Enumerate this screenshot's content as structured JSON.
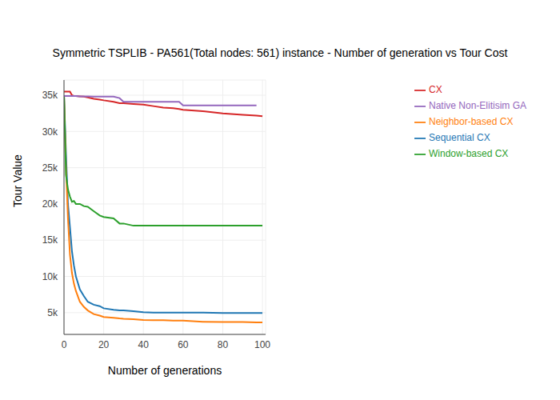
{
  "chart_data": {
    "type": "line",
    "title": "Symmetric TSPLIB - PA561(Total nodes: 561) instance - Number of generation vs Tour Cost",
    "x_label": "Number of generations",
    "y_label": "Tour Value",
    "x": [
      0,
      1,
      2,
      3,
      4,
      5,
      6,
      8,
      10,
      12,
      15,
      18,
      20,
      25,
      28,
      30,
      35,
      40,
      45,
      50,
      55,
      58,
      60,
      70,
      80,
      90,
      97,
      100
    ],
    "xlim": [
      0,
      101.6
    ],
    "xticks": [
      0,
      20,
      40,
      60,
      80,
      100
    ],
    "ylim": [
      2000,
      37100
    ],
    "yticks": [
      {
        "value": 5000,
        "label": "5k"
      },
      {
        "value": 10000,
        "label": "10k"
      },
      {
        "value": 15000,
        "label": "15k"
      },
      {
        "value": 20000,
        "label": "20k"
      },
      {
        "value": 25000,
        "label": "25k"
      },
      {
        "value": 30000,
        "label": "30k"
      },
      {
        "value": 35000,
        "label": "35k"
      }
    ],
    "grid": true,
    "legend": "top-right",
    "series": [
      {
        "name": "Sequential CX",
        "color": "#1f77b4",
        "values": [
          35000,
          27000,
          20000,
          16800,
          13500,
          11500,
          10000,
          8200,
          7300,
          6500,
          6100,
          5900,
          5600,
          5400,
          5300,
          5300,
          5200,
          5050,
          5000,
          5000,
          5000,
          5000,
          5000,
          5000,
          4950,
          4950,
          4950,
          4950
        ]
      },
      {
        "name": "Neighbor-based CX",
        "color": "#ff7f0e",
        "values": [
          35000,
          25000,
          18000,
          13000,
          10500,
          9000,
          8000,
          6500,
          5800,
          5300,
          4800,
          4600,
          4400,
          4300,
          4200,
          4150,
          4100,
          4000,
          3950,
          3950,
          3900,
          3900,
          3900,
          3750,
          3700,
          3700,
          3650,
          3650
        ]
      },
      {
        "name": "Window-based CX",
        "color": "#2ca02c",
        "values": [
          35000,
          24000,
          22000,
          21000,
          20300,
          20400,
          20000,
          20000,
          19700,
          19600,
          19000,
          18400,
          18200,
          18000,
          17300,
          17300,
          17000,
          17000,
          17000,
          17000,
          17000,
          17000,
          17000,
          17000,
          17000,
          17000,
          17000,
          17000
        ]
      },
      {
        "name": "CX",
        "color": "#d62728",
        "values": [
          35500,
          35500,
          35500,
          35500,
          35000,
          34900,
          34900,
          34850,
          34800,
          34700,
          34500,
          34400,
          34300,
          34100,
          33900,
          33900,
          33800,
          33700,
          33500,
          33300,
          33200,
          33100,
          33000,
          32800,
          32500,
          32300,
          32200,
          32100
        ]
      },
      {
        "name": "Native Non-Elitisim GA",
        "color": "#9467bd",
        "values": [
          34900,
          34900,
          34900,
          34900,
          34900,
          34900,
          34900,
          34850,
          34850,
          34850,
          34800,
          34800,
          34800,
          34800,
          34600,
          34100,
          34100,
          34100,
          34100,
          34100,
          34100,
          34100,
          33600,
          33600,
          33600,
          33600,
          33600,
          null
        ]
      }
    ]
  }
}
